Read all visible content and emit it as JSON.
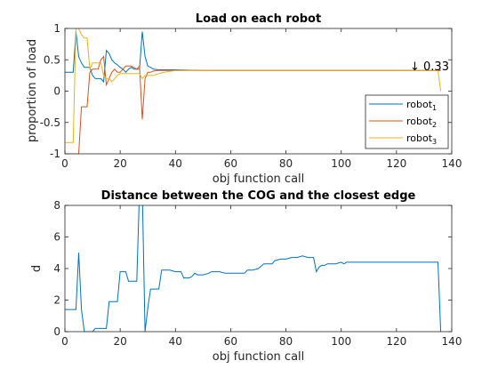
{
  "chart_data": [
    {
      "type": "line",
      "title": "Load on each robot",
      "xlabel": "obj function call",
      "ylabel": "proportion of load",
      "xlim": [
        0,
        140
      ],
      "ylim": [
        -1,
        1
      ],
      "xticks": [
        0,
        20,
        40,
        60,
        80,
        100,
        120,
        140
      ],
      "yticks": [
        -1,
        -0.5,
        0,
        0.5,
        1
      ],
      "xtick_labels": [
        "0",
        "20",
        "40",
        "60",
        "80",
        "100",
        "120",
        "140"
      ],
      "ytick_labels": [
        "-1",
        "-0.5",
        "0",
        "0.5",
        "1"
      ],
      "grid": false,
      "legend_position": "lower-right",
      "annotation": {
        "text": "↓ 0.33",
        "x": 127,
        "y": 0.33
      },
      "series": [
        {
          "name_base": "robot",
          "name_sub": "1",
          "color": "#0072bd",
          "x": [
            0,
            3,
            4,
            5,
            6,
            7,
            8,
            9,
            10,
            11,
            12,
            13,
            14,
            15,
            16,
            17,
            18,
            19,
            20,
            21,
            22,
            23,
            24,
            25,
            26,
            27,
            28,
            29,
            30,
            31,
            32,
            34,
            36,
            40,
            50,
            60,
            70,
            80,
            90,
            100,
            110,
            120,
            130,
            135,
            136
          ],
          "y": [
            0.3,
            0.3,
            0.95,
            0.55,
            0.45,
            0.38,
            0.38,
            0.38,
            0.25,
            0.2,
            0.2,
            0.2,
            0.15,
            0.65,
            0.6,
            0.5,
            0.45,
            0.42,
            0.38,
            0.35,
            0.3,
            0.35,
            0.38,
            0.35,
            0.35,
            0.35,
            0.95,
            0.55,
            0.4,
            0.38,
            0.35,
            0.34,
            0.34,
            0.34,
            0.33,
            0.33,
            0.33,
            0.33,
            0.33,
            0.33,
            0.33,
            0.33,
            0.33,
            0.33,
            0.33
          ]
        },
        {
          "name_base": "robot",
          "name_sub": "2",
          "color": "#d95319",
          "x": [
            0,
            2,
            3,
            4,
            5,
            6,
            7,
            8,
            9,
            10,
            11,
            12,
            13,
            14,
            15,
            16,
            17,
            18,
            19,
            20,
            22,
            24,
            26,
            27,
            28,
            29,
            30,
            31,
            32,
            34,
            36,
            40,
            50,
            60,
            70,
            80,
            90,
            100,
            110,
            120,
            130,
            135,
            136
          ],
          "y": [
            -1,
            -1,
            -1,
            -1,
            -1,
            -0.25,
            -0.25,
            -0.25,
            0.3,
            0.35,
            0.35,
            0.35,
            0.5,
            0.55,
            0.1,
            0.2,
            0.3,
            0.35,
            0.3,
            0.3,
            0.4,
            0.4,
            0.35,
            0.4,
            -0.45,
            0.2,
            0.3,
            0.3,
            0.32,
            0.33,
            0.33,
            0.33,
            0.33,
            0.33,
            0.33,
            0.33,
            0.33,
            0.33,
            0.33,
            0.33,
            0.33,
            0.33,
            0.33
          ]
        },
        {
          "name_base": "robot",
          "name_sub": "3",
          "color": "#edb120",
          "x": [
            0,
            3,
            4,
            5,
            6,
            7,
            8,
            9,
            10,
            11,
            12,
            13,
            14,
            15,
            16,
            17,
            18,
            19,
            20,
            22,
            24,
            26,
            27,
            28,
            29,
            30,
            31,
            32,
            34,
            36,
            40,
            50,
            60,
            70,
            80,
            90,
            100,
            110,
            120,
            130,
            135,
            136
          ],
          "y": [
            -0.82,
            -0.82,
            1.0,
            1.0,
            0.9,
            0.85,
            0.85,
            0.35,
            0.45,
            0.45,
            0.45,
            0.45,
            0.25,
            0.2,
            0.2,
            0.15,
            0.2,
            0.25,
            0.28,
            0.28,
            0.28,
            0.28,
            0.28,
            0.2,
            0.25,
            0.25,
            0.25,
            0.25,
            0.28,
            0.3,
            0.33,
            0.33,
            0.33,
            0.33,
            0.33,
            0.33,
            0.33,
            0.33,
            0.33,
            0.33,
            0.33,
            0.0
          ]
        }
      ]
    },
    {
      "type": "line",
      "title": "Distance between the COG and the closest edge",
      "xlabel": "obj function call",
      "ylabel": "d",
      "xlim": [
        0,
        140
      ],
      "ylim": [
        0,
        8
      ],
      "xticks": [
        0,
        20,
        40,
        60,
        80,
        100,
        120,
        140
      ],
      "yticks": [
        0,
        2,
        4,
        6,
        8
      ],
      "xtick_labels": [
        "0",
        "20",
        "40",
        "60",
        "80",
        "100",
        "120",
        "140"
      ],
      "ytick_labels": [
        "0",
        "2",
        "4",
        "6",
        "8"
      ],
      "grid": false,
      "series": [
        {
          "color": "#0072bd",
          "x": [
            0,
            1,
            2,
            3,
            4,
            5,
            6,
            7,
            8,
            9,
            10,
            11,
            12,
            13,
            14,
            15,
            16,
            17,
            18,
            19,
            20,
            21,
            22,
            23,
            24,
            25,
            26,
            27,
            28,
            29,
            30,
            31,
            32,
            33,
            34,
            35,
            36,
            37,
            38,
            40,
            42,
            43,
            44,
            45,
            46,
            47,
            48,
            50,
            52,
            53,
            54,
            56,
            58,
            60,
            62,
            65,
            66,
            68,
            70,
            72,
            74,
            75,
            76,
            78,
            80,
            82,
            84,
            86,
            88,
            89,
            90,
            91,
            92,
            93,
            94,
            95,
            96,
            98,
            100,
            101,
            102,
            104,
            110,
            115,
            120,
            125,
            130,
            135,
            136
          ],
          "y": [
            1.4,
            1.4,
            1.4,
            1.4,
            1.4,
            5.0,
            1.4,
            0.0,
            0.0,
            0.0,
            0.0,
            0.2,
            0.2,
            0.2,
            0.2,
            0.2,
            1.9,
            1.9,
            1.9,
            1.9,
            3.8,
            3.8,
            3.8,
            3.2,
            3.2,
            3.2,
            3.2,
            9.0,
            9.0,
            0.0,
            1.5,
            2.7,
            2.7,
            2.7,
            2.7,
            3.9,
            3.9,
            3.9,
            3.9,
            3.8,
            3.8,
            3.4,
            3.4,
            3.4,
            3.5,
            3.7,
            3.6,
            3.6,
            3.7,
            3.8,
            3.8,
            3.8,
            3.7,
            3.7,
            3.7,
            3.7,
            3.9,
            3.9,
            4.0,
            4.3,
            4.3,
            4.3,
            4.5,
            4.6,
            4.6,
            4.7,
            4.7,
            4.8,
            4.7,
            4.7,
            4.7,
            3.8,
            4.1,
            4.2,
            4.2,
            4.3,
            4.3,
            4.3,
            4.4,
            4.3,
            4.4,
            4.4,
            4.4,
            4.4,
            4.4,
            4.4,
            4.4,
            4.4,
            0.0
          ]
        }
      ]
    }
  ]
}
